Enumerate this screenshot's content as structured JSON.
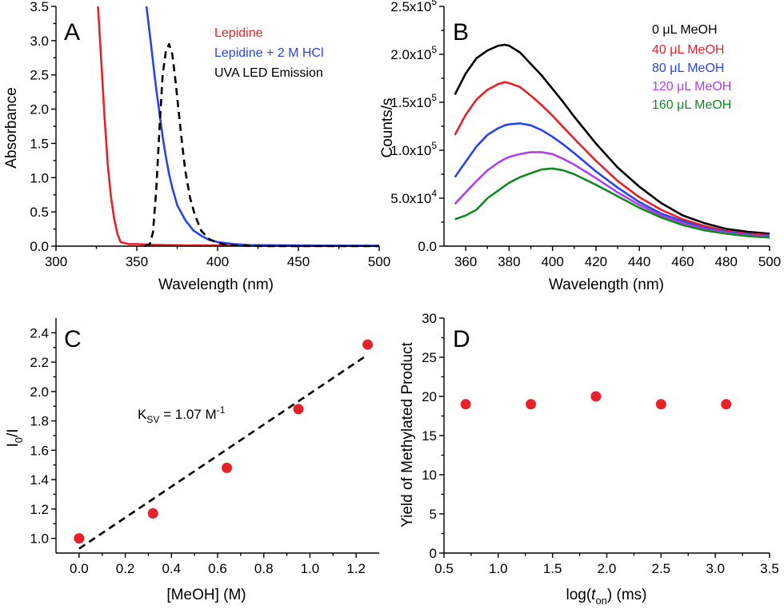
{
  "chart_data": [
    {
      "panel_letter": "A",
      "type": "line",
      "xlabel": "Wavelength (nm)",
      "ylabel": "Absorbance",
      "xlim": [
        300,
        500
      ],
      "ylim": [
        0,
        3.5
      ],
      "xticks": [
        300,
        350,
        400,
        450,
        500
      ],
      "xtick_labels": [
        "300",
        "350",
        "400",
        "450",
        "500"
      ],
      "yticks": [
        0,
        0.5,
        1.0,
        1.5,
        2.0,
        2.5,
        3.0,
        3.5
      ],
      "ytick_labels": [
        "0.0",
        "0.5",
        "1.0",
        "1.5",
        "2.0",
        "2.5",
        "3.0",
        "3.5"
      ],
      "legend_position": "top-right",
      "series": [
        {
          "name": "Lepidine",
          "color": "#e8202a",
          "dash": false,
          "x": [
            326,
            328,
            330,
            332,
            334,
            336,
            338,
            340,
            345,
            350,
            360,
            380,
            400,
            450,
            500
          ],
          "y": [
            3.5,
            2.7,
            1.9,
            1.2,
            0.72,
            0.4,
            0.18,
            0.06,
            0.03,
            0.03,
            0.02,
            0.01,
            0.01,
            0.005,
            0.003
          ]
        },
        {
          "name": "Lepidine + 2 M HCl",
          "color": "#2a44e8",
          "dash": false,
          "x": [
            356,
            358,
            360,
            362,
            364,
            366,
            368,
            370,
            372,
            375,
            380,
            385,
            390,
            395,
            400,
            410,
            420,
            450,
            500
          ],
          "y": [
            3.5,
            3.1,
            2.7,
            2.3,
            1.95,
            1.6,
            1.3,
            1.05,
            0.85,
            0.6,
            0.38,
            0.23,
            0.15,
            0.09,
            0.06,
            0.03,
            0.015,
            0.01,
            0.005
          ]
        },
        {
          "name": "UVA LED Emission",
          "color": "#000000",
          "dash": true,
          "x": [
            355,
            358,
            360,
            362,
            364,
            366,
            368,
            370,
            372,
            374,
            376,
            378,
            380,
            383,
            386,
            390,
            395,
            400,
            405,
            410,
            420,
            430,
            450,
            500
          ],
          "y": [
            0.0,
            0.03,
            0.2,
            0.8,
            1.7,
            2.5,
            2.85,
            2.95,
            2.8,
            2.4,
            1.95,
            1.5,
            1.1,
            0.7,
            0.45,
            0.22,
            0.1,
            0.05,
            0.02,
            0.01,
            0.005,
            0.0,
            0.0,
            0.0
          ]
        }
      ]
    },
    {
      "panel_letter": "B",
      "type": "line",
      "xlabel": "Wavelength (nm)",
      "ylabel": "Counts/s",
      "xlim": [
        350,
        500
      ],
      "ylim": [
        0,
        250000
      ],
      "xticks": [
        360,
        380,
        400,
        420,
        440,
        460,
        480,
        500
      ],
      "xtick_labels": [
        "360",
        "380",
        "400",
        "420",
        "440",
        "460",
        "480",
        "500"
      ],
      "yticks": [
        0,
        50000,
        100000,
        150000,
        200000,
        250000
      ],
      "ytick_labels": [
        {
          "mantissa": "0.0",
          "exponent": ""
        },
        {
          "mantissa": "5.0x10",
          "exponent": "4"
        },
        {
          "mantissa": "1.0x10",
          "exponent": "5"
        },
        {
          "mantissa": "1.5x10",
          "exponent": "5"
        },
        {
          "mantissa": "2.0x10",
          "exponent": "5"
        },
        {
          "mantissa": "2.5x10",
          "exponent": "5"
        }
      ],
      "legend_position": "top-right",
      "x": [
        355,
        360,
        365,
        370,
        375,
        378,
        380,
        385,
        390,
        395,
        400,
        405,
        410,
        420,
        430,
        440,
        450,
        460,
        470,
        480,
        490,
        500
      ],
      "series": [
        {
          "name": "0 μL MeOH",
          "color": "#000000",
          "y": [
            158000,
            180000,
            196000,
            204000,
            209000,
            210000,
            209000,
            202000,
            190000,
            178000,
            164000,
            150000,
            135000,
            107000,
            82000,
            62000,
            45000,
            32000,
            24000,
            18000,
            15000,
            13000
          ]
        },
        {
          "name": "40 μL MeOH",
          "color": "#e8202a",
          "y": [
            116000,
            137000,
            153000,
            163000,
            169000,
            171000,
            170000,
            166000,
            157000,
            147000,
            136000,
            124000,
            112000,
            89000,
            68000,
            51000,
            38000,
            28000,
            21000,
            16000,
            13000,
            11500
          ]
        },
        {
          "name": "80 μL MeOH",
          "color": "#2a44e8",
          "y": [
            72000,
            88000,
            104000,
            116000,
            123000,
            126000,
            127000,
            128000,
            126000,
            121000,
            114000,
            106000,
            97000,
            78000,
            61000,
            46000,
            34000,
            26000,
            19000,
            15000,
            12000,
            10500
          ]
        },
        {
          "name": "120 μL MeOH",
          "color": "#b040e8",
          "y": [
            44000,
            56000,
            68000,
            79000,
            87000,
            91000,
            93000,
            96000,
            98000,
            98000,
            96000,
            91000,
            85000,
            71000,
            56000,
            43000,
            32000,
            24000,
            18000,
            14000,
            11500,
            10000
          ]
        },
        {
          "name": "160 μL MeOH",
          "color": "#118a22",
          "y": [
            28000,
            32000,
            38000,
            50000,
            58000,
            63000,
            66000,
            72000,
            76000,
            80000,
            81000,
            79000,
            75000,
            64000,
            52000,
            40000,
            30000,
            22000,
            16500,
            13000,
            10500,
            9000
          ]
        }
      ]
    },
    {
      "panel_letter": "C",
      "type": "scatter",
      "xlabel": "[MeOH] (M)",
      "ylabel": {
        "main": "I",
        "sub": "0",
        "rest": "/I"
      },
      "xlim": [
        -0.1,
        1.3
      ],
      "ylim": [
        0.9,
        2.5
      ],
      "xticks": [
        0.0,
        0.2,
        0.4,
        0.6,
        0.8,
        1.0,
        1.2
      ],
      "xtick_labels": [
        "0.0",
        "0.2",
        "0.4",
        "0.6",
        "0.8",
        "1.0",
        "1.2"
      ],
      "yticks": [
        1.0,
        1.2,
        1.4,
        1.6,
        1.8,
        2.0,
        2.2,
        2.4
      ],
      "ytick_labels": [
        "1.0",
        "1.2",
        "1.4",
        "1.6",
        "1.8",
        "2.0",
        "2.2",
        "2.4"
      ],
      "points": {
        "x": [
          0.0,
          0.32,
          0.64,
          0.95,
          1.25
        ],
        "y": [
          1.0,
          1.17,
          1.48,
          1.88,
          2.32
        ],
        "color": "#e8202a"
      },
      "fit_line": {
        "x": [
          0.0,
          1.25
        ],
        "y": [
          0.93,
          2.25
        ],
        "color": "#000000",
        "dash": true
      },
      "annotation": {
        "main": "K",
        "sub": "SV",
        "rest": " = 1.07 M",
        "sup": "-1"
      }
    },
    {
      "panel_letter": "D",
      "type": "scatter",
      "xlabel": {
        "pre": "log(",
        "italic": "t",
        "sub": "on",
        "post": ") (ms)"
      },
      "ylabel": "Yield of Methylated Product",
      "xlim": [
        0.5,
        3.5
      ],
      "ylim": [
        0,
        30
      ],
      "xticks": [
        0.5,
        1.0,
        1.5,
        2.0,
        2.5,
        3.0,
        3.5
      ],
      "xtick_labels": [
        "0.5",
        "1.0",
        "1.5",
        "2.0",
        "2.5",
        "3.0",
        "3.5"
      ],
      "yticks": [
        0,
        5,
        10,
        15,
        20,
        25,
        30
      ],
      "ytick_labels": [
        "0",
        "5",
        "10",
        "15",
        "20",
        "25",
        "30"
      ],
      "points": {
        "x": [
          0.7,
          1.3,
          1.9,
          2.5,
          3.1
        ],
        "y": [
          19,
          19,
          20,
          19,
          19
        ],
        "color": "#e8202a"
      }
    }
  ]
}
